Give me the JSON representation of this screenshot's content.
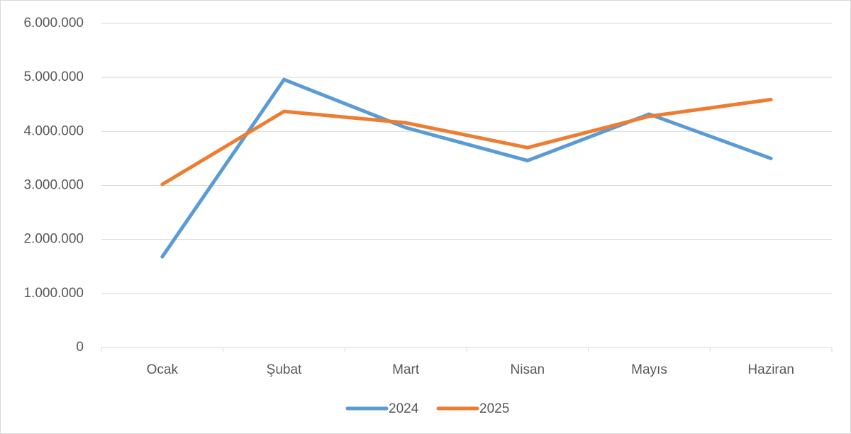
{
  "chart_data": {
    "type": "line",
    "categories": [
      "Ocak",
      "Şubat",
      "Mart",
      "Nisan",
      "Mayıs",
      "Haziran"
    ],
    "series": [
      {
        "name": "2024",
        "color": "#5b9bd5",
        "values": [
          1680000,
          4960000,
          4070000,
          3460000,
          4320000,
          3500000
        ]
      },
      {
        "name": "2025",
        "color": "#ed7d31",
        "values": [
          3020000,
          4370000,
          4160000,
          3700000,
          4280000,
          4590000
        ]
      }
    ],
    "ylim": [
      0,
      6000000
    ],
    "yticks": [
      0,
      {
        "value": 1000000,
        "label": "1.000.000"
      },
      {
        "value": 2000000,
        "label": "2.000.000"
      },
      {
        "value": 3000000,
        "label": "3.000.000"
      },
      {
        "value": 4000000,
        "label": "4.000.000"
      },
      {
        "value": 5000000,
        "label": "5.000.000"
      },
      {
        "value": 6000000,
        "label": "6.000.000"
      }
    ],
    "grid": true,
    "legend": "bottom"
  }
}
